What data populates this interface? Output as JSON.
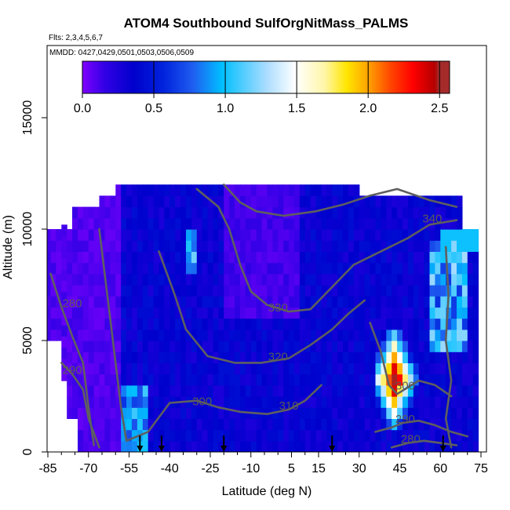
{
  "chart_data": {
    "type": "heatmap",
    "title": "ATOM4 Southbound SulfOrgNitMass_PALMS",
    "subtitle_flights": "Flts: 2,3,4,5,6,7",
    "subtitle_dates": "MMDD: 0427,0429,0501,0503,0506,0509",
    "xlabel": "Latitude (deg N)",
    "ylabel": "Altitude (m)",
    "xlim": [
      -85,
      85
    ],
    "ylim": [
      0,
      17500
    ],
    "x_ticks": [
      -85,
      -70,
      -55,
      -40,
      -25,
      -10,
      5,
      15,
      30,
      45,
      60,
      75
    ],
    "y_ticks": [
      0,
      5000,
      10000,
      15000
    ],
    "colorbar": {
      "ticks": [
        0.0,
        0.5,
        1.0,
        1.5,
        2.0,
        2.5
      ],
      "tick_labels": [
        "0.0",
        "0.5",
        "1.0",
        "1.5",
        "2.0",
        "2.5"
      ],
      "range": [
        0,
        2.57
      ],
      "colors": [
        "#7f00ff",
        "#3300e6",
        "#0000cc",
        "#0022dd",
        "#1f5cf0",
        "#00bfff",
        "#a9dcff",
        "#ffffff",
        "#fff6a8",
        "#ffe600",
        "#ffa000",
        "#ff4500",
        "#ff0000",
        "#b30000",
        "#a52a2a"
      ]
    },
    "contours": [
      {
        "label": "280",
        "x": -76,
        "y": 6500
      },
      {
        "label": "290",
        "x": -76,
        "y": 3500
      },
      {
        "label": "300",
        "x": -28,
        "y": 2100
      },
      {
        "label": "310",
        "x": 4,
        "y": 1900
      },
      {
        "label": "320",
        "x": 0,
        "y": 4100
      },
      {
        "label": "330",
        "x": 0,
        "y": 6300
      },
      {
        "label": "340",
        "x": 57,
        "y": 10300
      },
      {
        "label": "300",
        "x": 47,
        "y": 2800
      },
      {
        "label": "290",
        "x": 47,
        "y": 1300
      },
      {
        "label": "280",
        "x": 49,
        "y": 400
      }
    ],
    "markers_x": [
      -51,
      -43,
      -20,
      20,
      61
    ]
  }
}
